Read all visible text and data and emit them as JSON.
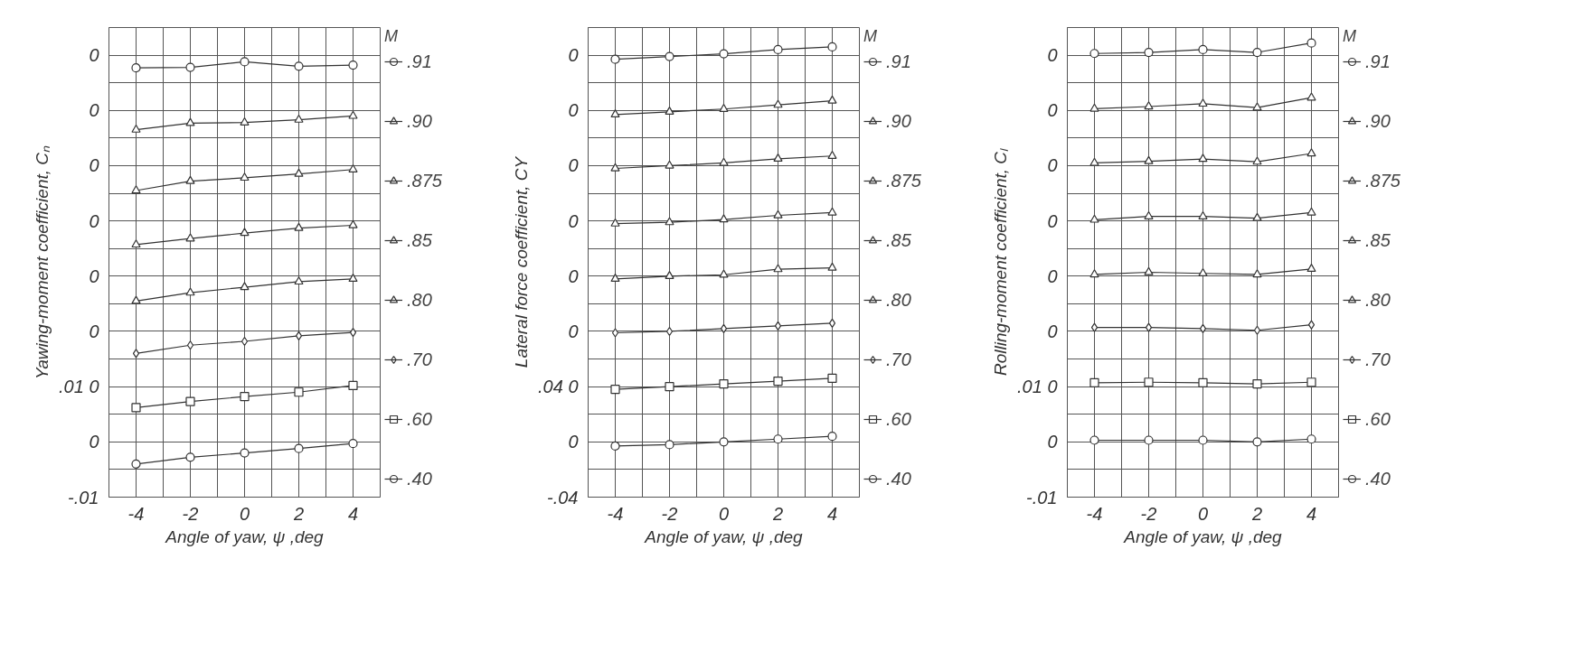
{
  "chart_data": [
    {
      "type": "line",
      "xlabel": "Angle of yaw, ψ ,deg",
      "ylabel": "Yawing-moment coefficient, Cₙ",
      "legend_title": "M",
      "legend": "right",
      "grid": true,
      "line_style": "solid",
      "x": [
        -4,
        -2,
        0,
        2,
        4
      ],
      "xlim": [
        -5,
        5
      ],
      "xticks": [
        {
          "value": -5,
          "label": null
        },
        -4,
        {
          "value": -3,
          "label": null
        },
        -2,
        {
          "value": -1,
          "label": null
        },
        0,
        {
          "value": 1,
          "label": null
        },
        2,
        {
          "value": 3,
          "label": null
        },
        4,
        {
          "value": 5,
          "label": null
        }
      ],
      "ylim": [
        -0.01,
        0.075
      ],
      "yticks": [
        {
          "value": -0.01,
          "label": "-.01"
        },
        {
          "value": -0.005,
          "label": null
        },
        {
          "value": 0,
          "label": "0"
        },
        {
          "value": 0.005,
          "label": null
        },
        {
          "value": 0.01,
          "label": ".01 0"
        },
        {
          "value": 0.015,
          "label": null
        },
        {
          "value": 0.02,
          "label": "0"
        },
        {
          "value": 0.025,
          "label": null
        },
        {
          "value": 0.03,
          "label": "0"
        },
        {
          "value": 0.035,
          "label": null
        },
        {
          "value": 0.04,
          "label": "0"
        },
        {
          "value": 0.045,
          "label": null
        },
        {
          "value": 0.05,
          "label": "0"
        },
        {
          "value": 0.055,
          "label": null
        },
        {
          "value": 0.06,
          "label": "0"
        },
        {
          "value": 0.065,
          "label": null
        },
        {
          "value": 0.07,
          "label": "0"
        },
        {
          "value": 0.075,
          "label": null
        }
      ],
      "series": [
        {
          "name": ".91",
          "color": "#333333",
          "marker": "circle",
          "values": [
            0.0677,
            0.0678,
            0.0688,
            0.068,
            0.0682
          ]
        },
        {
          "name": ".90",
          "color": "#333333",
          "marker": "triangle",
          "values": [
            0.0565,
            0.0577,
            0.0578,
            0.0583,
            0.059
          ]
        },
        {
          "name": ".875",
          "color": "#333333",
          "marker": "triangle",
          "values": [
            0.0455,
            0.0472,
            0.0478,
            0.0485,
            0.0493
          ]
        },
        {
          "name": ".85",
          "color": "#333333",
          "marker": "triangle",
          "values": [
            0.0357,
            0.0368,
            0.0378,
            0.0387,
            0.0392
          ]
        },
        {
          "name": ".80",
          "color": "#333333",
          "marker": "triangle",
          "values": [
            0.0255,
            0.027,
            0.028,
            0.029,
            0.0295
          ]
        },
        {
          "name": ".70",
          "color": "#333333",
          "marker": "diamond",
          "values": [
            0.016,
            0.0175,
            0.0182,
            0.0192,
            0.0198
          ]
        },
        {
          "name": ".60",
          "color": "#333333",
          "marker": "square",
          "values": [
            0.0062,
            0.0073,
            0.0082,
            0.009,
            0.0102
          ]
        },
        {
          "name": ".40",
          "color": "#333333",
          "marker": "circle",
          "values": [
            -0.004,
            -0.0028,
            -0.002,
            -0.0012,
            -0.0003
          ]
        }
      ]
    },
    {
      "type": "line",
      "xlabel": "Angle of yaw, ψ ,deg",
      "ylabel": "Lateral force coefficient, CY",
      "legend_title": "M",
      "legend": "right",
      "grid": true,
      "line_style": "solid",
      "x": [
        -4,
        -2,
        0,
        2,
        4
      ],
      "xlim": [
        -5,
        5
      ],
      "xticks": [
        {
          "value": -5,
          "label": null
        },
        -4,
        {
          "value": -3,
          "label": null
        },
        -2,
        {
          "value": -1,
          "label": null
        },
        0,
        {
          "value": 1,
          "label": null
        },
        2,
        {
          "value": 3,
          "label": null
        },
        4,
        {
          "value": 5,
          "label": null
        }
      ],
      "ylim": [
        -0.04,
        0.3
      ],
      "yticks": [
        {
          "value": -0.04,
          "label": "-.04"
        },
        {
          "value": -0.02,
          "label": null
        },
        {
          "value": 0,
          "label": "0"
        },
        {
          "value": 0.02,
          "label": null
        },
        {
          "value": 0.04,
          "label": ".04 0"
        },
        {
          "value": 0.06,
          "label": null
        },
        {
          "value": 0.08,
          "label": "0"
        },
        {
          "value": 0.1,
          "label": null
        },
        {
          "value": 0.12,
          "label": "0"
        },
        {
          "value": 0.14,
          "label": null
        },
        {
          "value": 0.16,
          "label": "0"
        },
        {
          "value": 0.18,
          "label": null
        },
        {
          "value": 0.2,
          "label": "0"
        },
        {
          "value": 0.22,
          "label": null
        },
        {
          "value": 0.24,
          "label": "0"
        },
        {
          "value": 0.26,
          "label": null
        },
        {
          "value": 0.28,
          "label": "0"
        },
        {
          "value": 0.3,
          "label": null
        }
      ],
      "series": [
        {
          "name": ".91",
          "color": "#333333",
          "marker": "circle",
          "values": [
            0.277,
            0.279,
            0.281,
            0.284,
            0.286
          ]
        },
        {
          "name": ".90",
          "color": "#333333",
          "marker": "triangle",
          "values": [
            0.237,
            0.239,
            0.241,
            0.244,
            0.247
          ]
        },
        {
          "name": ".875",
          "color": "#333333",
          "marker": "triangle",
          "values": [
            0.198,
            0.2,
            0.202,
            0.205,
            0.207
          ]
        },
        {
          "name": ".85",
          "color": "#333333",
          "marker": "triangle",
          "values": [
            0.158,
            0.159,
            0.161,
            0.164,
            0.166
          ]
        },
        {
          "name": ".80",
          "color": "#333333",
          "marker": "triangle",
          "values": [
            0.118,
            0.12,
            0.121,
            0.125,
            0.126
          ]
        },
        {
          "name": ".70",
          "color": "#333333",
          "marker": "diamond",
          "values": [
            0.079,
            0.08,
            0.082,
            0.084,
            0.086
          ]
        },
        {
          "name": ".60",
          "color": "#333333",
          "marker": "square",
          "values": [
            0.038,
            0.04,
            0.042,
            0.044,
            0.046
          ]
        },
        {
          "name": ".40",
          "color": "#333333",
          "marker": "circle",
          "values": [
            -0.003,
            -0.002,
            0.0,
            0.002,
            0.004
          ]
        }
      ]
    },
    {
      "type": "line",
      "xlabel": "Angle of yaw, ψ ,deg",
      "ylabel": "Rolling-moment coefficient, Cₗ",
      "legend_title": "M",
      "legend": "right",
      "grid": true,
      "line_style": "solid",
      "x": [
        -4,
        -2,
        0,
        2,
        4
      ],
      "xlim": [
        -5,
        5
      ],
      "xticks": [
        {
          "value": -5,
          "label": null
        },
        -4,
        {
          "value": -3,
          "label": null
        },
        -2,
        {
          "value": -1,
          "label": null
        },
        0,
        {
          "value": 1,
          "label": null
        },
        2,
        {
          "value": 3,
          "label": null
        },
        4,
        {
          "value": 5,
          "label": null
        }
      ],
      "ylim": [
        -0.01,
        0.075
      ],
      "yticks": [
        {
          "value": -0.01,
          "label": "-.01"
        },
        {
          "value": -0.005,
          "label": null
        },
        {
          "value": 0,
          "label": "0"
        },
        {
          "value": 0.005,
          "label": null
        },
        {
          "value": 0.01,
          "label": ".01 0"
        },
        {
          "value": 0.015,
          "label": null
        },
        {
          "value": 0.02,
          "label": "0"
        },
        {
          "value": 0.025,
          "label": null
        },
        {
          "value": 0.03,
          "label": "0"
        },
        {
          "value": 0.035,
          "label": null
        },
        {
          "value": 0.04,
          "label": "0"
        },
        {
          "value": 0.045,
          "label": null
        },
        {
          "value": 0.05,
          "label": "0"
        },
        {
          "value": 0.055,
          "label": null
        },
        {
          "value": 0.06,
          "label": "0"
        },
        {
          "value": 0.065,
          "label": null
        },
        {
          "value": 0.07,
          "label": "0"
        },
        {
          "value": 0.075,
          "label": null
        }
      ],
      "series": [
        {
          "name": ".91",
          "color": "#333333",
          "marker": "circle",
          "values": [
            0.0703,
            0.0705,
            0.071,
            0.0705,
            0.0722
          ]
        },
        {
          "name": ".90",
          "color": "#333333",
          "marker": "triangle",
          "values": [
            0.0603,
            0.0607,
            0.0612,
            0.0605,
            0.0623
          ]
        },
        {
          "name": ".875",
          "color": "#333333",
          "marker": "triangle",
          "values": [
            0.0505,
            0.0508,
            0.0512,
            0.0507,
            0.0522
          ]
        },
        {
          "name": ".85",
          "color": "#333333",
          "marker": "triangle",
          "values": [
            0.0402,
            0.0408,
            0.0408,
            0.0405,
            0.0415
          ]
        },
        {
          "name": ".80",
          "color": "#333333",
          "marker": "triangle",
          "values": [
            0.0303,
            0.0307,
            0.0305,
            0.0303,
            0.0313
          ]
        },
        {
          "name": ".70",
          "color": "#333333",
          "marker": "diamond",
          "values": [
            0.0207,
            0.0207,
            0.0205,
            0.0202,
            0.0212
          ]
        },
        {
          "name": ".60",
          "color": "#333333",
          "marker": "square",
          "values": [
            0.0107,
            0.0108,
            0.0107,
            0.0105,
            0.0108
          ]
        },
        {
          "name": ".40",
          "color": "#333333",
          "marker": "circle",
          "values": [
            0.0003,
            0.0003,
            0.0003,
            0.0,
            0.0005
          ]
        }
      ]
    }
  ]
}
